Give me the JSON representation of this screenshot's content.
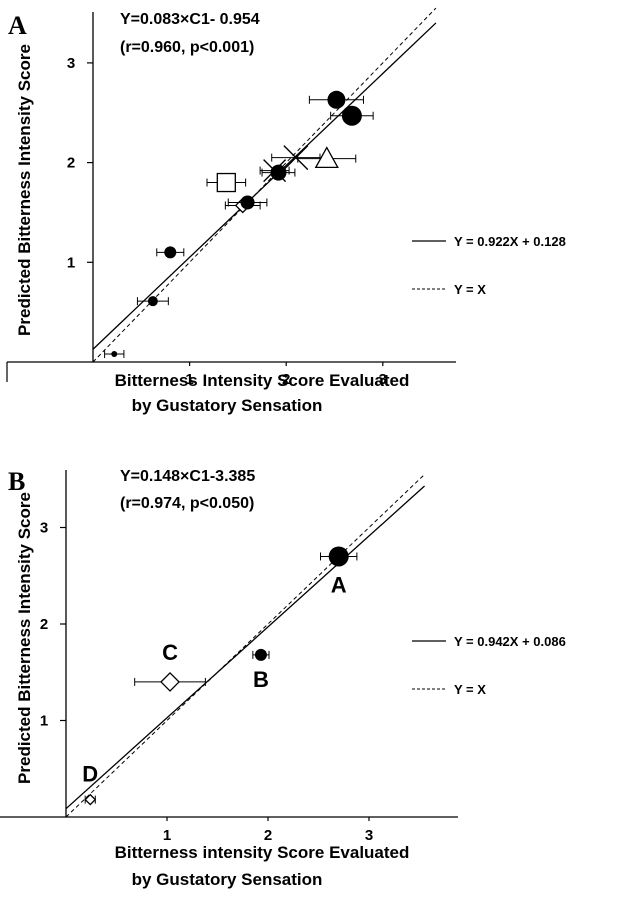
{
  "chart_data": [
    {
      "panel": "A",
      "type": "scatter",
      "equation_line1": "Y=0.083×C1- 0.954",
      "equation_line2": "(r=0.960, p<0.001)",
      "xlabel_line1": "Bitterness Intensity Score Evaluated",
      "xlabel_line2": "by Gustatory Sensation",
      "ylabel": "Predicted Bitterness Intensity Score",
      "xlim": [
        0,
        3.5
      ],
      "ylim": [
        0,
        3.05
      ],
      "xticks": [
        1,
        2,
        3
      ],
      "yticks": [
        1,
        2,
        3
      ],
      "grid": false,
      "legend": [
        {
          "label": "Y = 0.922X + 0.128",
          "style": "solid"
        },
        {
          "label": "Y = X",
          "style": "dashed"
        }
      ],
      "lines": [
        {
          "style": "solid",
          "slope": 0.922,
          "intercept": 0.128
        },
        {
          "style": "dashed",
          "slope": 1,
          "intercept": 0
        }
      ],
      "points": [
        {
          "x": 0.22,
          "y": 0.08,
          "xerr": 0.1,
          "marker": "circle-filled",
          "size": 3
        },
        {
          "x": 0.62,
          "y": 0.61,
          "xerr": 0.16,
          "marker": "circle-filled",
          "size": 5
        },
        {
          "x": 0.8,
          "y": 1.1,
          "xerr": 0.14,
          "marker": "circle-filled",
          "size": 6
        },
        {
          "x": 1.38,
          "y": 1.8,
          "xerr": 0.2,
          "marker": "square-open",
          "size": 9
        },
        {
          "x": 1.55,
          "y": 1.57,
          "xerr": 0.18,
          "marker": "diamond-open",
          "size": 7
        },
        {
          "x": 1.6,
          "y": 1.6,
          "xerr": 0.2,
          "marker": "circle-filled",
          "size": 7
        },
        {
          "x": 1.88,
          "y": 1.92,
          "xerr": 0.15,
          "marker": "cross",
          "size": 11
        },
        {
          "x": 1.92,
          "y": 1.9,
          "xerr": 0.17,
          "marker": "circle-filled",
          "size": 8
        },
        {
          "x": 2.1,
          "y": 2.05,
          "xerr": 0.25,
          "marker": "cross",
          "size": 12
        },
        {
          "x": 2.42,
          "y": 2.04,
          "xerr": 0.3,
          "marker": "triangle-open",
          "size": 11
        },
        {
          "x": 2.52,
          "y": 2.63,
          "xerr": 0.28,
          "marker": "circle-filled",
          "size": 9
        },
        {
          "x": 2.68,
          "y": 2.47,
          "xerr": 0.22,
          "marker": "circle-filled",
          "size": 10
        }
      ]
    },
    {
      "panel": "B",
      "type": "scatter",
      "equation_line1": "Y=0.148×C1-3.385",
      "equation_line2": "(r=0.974, p<0.050)",
      "xlabel_line1": "Bitterness intensity Score Evaluated",
      "xlabel_line2": "by Gustatory Sensation",
      "ylabel": "Predicted Bitterness Intensity Score",
      "xlim": [
        0,
        3.5
      ],
      "ylim": [
        0,
        3.05
      ],
      "xticks": [
        1,
        2,
        3
      ],
      "yticks": [
        1,
        2,
        3
      ],
      "grid": false,
      "legend": [
        {
          "label": "Y = 0.942X + 0.086",
          "style": "solid"
        },
        {
          "label": "Y = X",
          "style": "dashed"
        }
      ],
      "lines": [
        {
          "style": "solid",
          "slope": 0.942,
          "intercept": 0.086
        },
        {
          "style": "dashed",
          "slope": 1,
          "intercept": 0
        }
      ],
      "points": [
        {
          "label": "A",
          "x": 2.7,
          "y": 2.7,
          "xerr": 0.18,
          "marker": "circle-filled",
          "size": 10
        },
        {
          "label": "B",
          "x": 1.93,
          "y": 1.68,
          "xerr": 0.08,
          "marker": "circle-filled",
          "size": 6
        },
        {
          "label": "C",
          "x": 1.03,
          "y": 1.4,
          "xerr": 0.35,
          "marker": "diamond-open",
          "size": 9
        },
        {
          "label": "D",
          "x": 0.24,
          "y": 0.18,
          "xerr": 0.05,
          "marker": "diamond-open",
          "size": 5
        }
      ]
    }
  ]
}
